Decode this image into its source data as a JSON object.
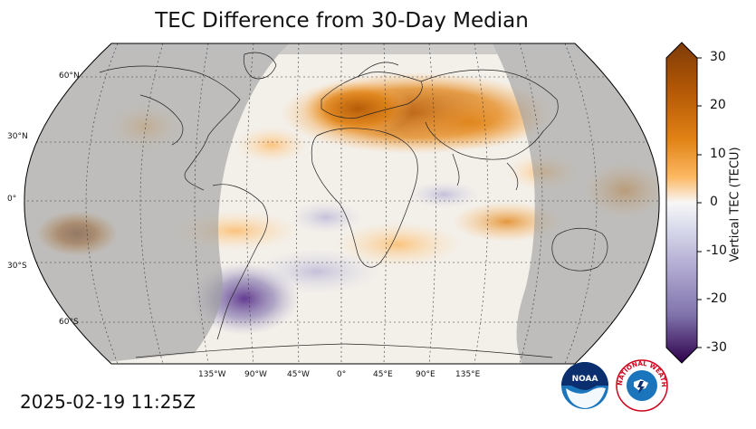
{
  "title": "TEC Difference from 30-Day Median",
  "timestamp": "2025-02-19 11:25Z",
  "projection": "robinson",
  "colorbar": {
    "label": "Vertical TEC (TECU)",
    "ticks": [
      "30",
      "20",
      "10",
      "0",
      "-10",
      "-20",
      "-30"
    ],
    "range": [
      -30,
      30
    ],
    "colormap": "PuOr_r"
  },
  "graticule": {
    "lat_labels": [
      "60°N",
      "30°N",
      "0°",
      "30°S",
      "60°S"
    ],
    "lon_labels": [
      "135°W",
      "90°W",
      "45°W",
      "0°",
      "45°E",
      "90°E",
      "135°E"
    ]
  },
  "logos": {
    "noaa_icon": "noaa-logo",
    "nws_icon": "nws-logo",
    "noaa_text": "NOAA",
    "nws_ring_text": "NATIONAL WEATHER SERVICE"
  },
  "colors": {
    "night_mask": "#bdbdbd",
    "positive_max": "#7f3b08",
    "negative_max": "#2d004b",
    "neutral": "#f7f7f7"
  }
}
